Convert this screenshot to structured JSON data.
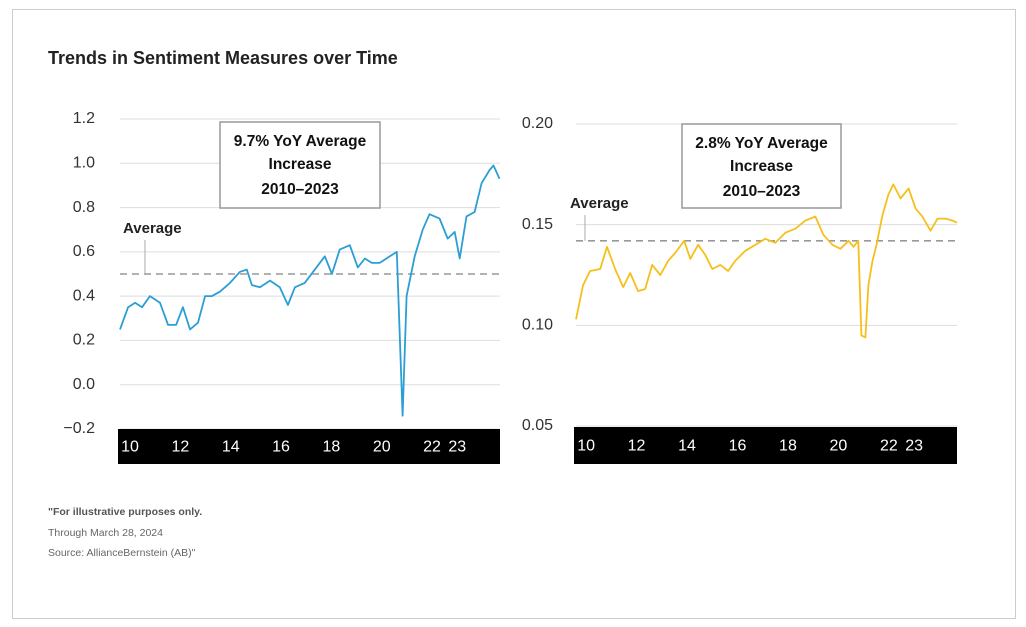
{
  "title": "Trends in Sentiment Measures over Time",
  "notes": [
    "\"For illustrative purposes only.",
    "Through March 28, 2024",
    "Source: AllianceBernstein (AB)\""
  ],
  "chart_data": [
    {
      "type": "line",
      "annotation": [
        "9.7% YoY Average",
        "Increase",
        "2010–2023"
      ],
      "average": {
        "label": "Average",
        "value": 0.5
      },
      "x": [
        9.6,
        9.92,
        10.2,
        10.48,
        10.79,
        11.19,
        11.51,
        11.83,
        12.1,
        12.38,
        12.7,
        12.98,
        13.25,
        13.57,
        13.97,
        14.37,
        14.64,
        14.84,
        15.16,
        15.56,
        15.95,
        16.27,
        16.55,
        16.94,
        17.34,
        17.74,
        18.02,
        18.33,
        18.73,
        19.05,
        19.33,
        19.6,
        19.92,
        20.32,
        20.6,
        20.83,
        20.99,
        21.31,
        21.63,
        21.9,
        22.3,
        22.62,
        22.9,
        23.1,
        23.37,
        23.69,
        23.97,
        24.29,
        24.44,
        24.68
      ],
      "series": [
        {
          "color": "#2b9ed4",
          "values": [
            0.25,
            0.35,
            0.37,
            0.35,
            0.4,
            0.37,
            0.27,
            0.27,
            0.35,
            0.25,
            0.28,
            0.4,
            0.4,
            0.42,
            0.46,
            0.51,
            0.52,
            0.45,
            0.44,
            0.47,
            0.44,
            0.36,
            0.44,
            0.46,
            0.52,
            0.58,
            0.5,
            0.61,
            0.63,
            0.53,
            0.57,
            0.55,
            0.55,
            0.58,
            0.6,
            -0.14,
            0.4,
            0.58,
            0.7,
            0.77,
            0.75,
            0.66,
            0.69,
            0.57,
            0.76,
            0.78,
            0.91,
            0.97,
            0.99,
            0.93
          ]
        }
      ],
      "xlim": [
        9.6,
        24.7
      ],
      "xticks": [
        10,
        12,
        14,
        16,
        18,
        20,
        22,
        23
      ],
      "ylim": [
        -0.2,
        1.2
      ],
      "yticks": [
        {
          "value": -0.2,
          "label": "−0.2"
        },
        {
          "value": 0,
          "label": "0.0"
        },
        0.2,
        0.4,
        0.6,
        0.8,
        {
          "value": 1,
          "label": "1.0"
        },
        1.2
      ],
      "grid": true
    },
    {
      "type": "line",
      "annotation": [
        "2.8% YoY Average",
        "Increase",
        "2010–2023"
      ],
      "average": {
        "label": "Average",
        "value": 0.142
      },
      "x": [
        9.6,
        9.88,
        10.16,
        10.56,
        10.83,
        11.15,
        11.47,
        11.75,
        12.06,
        12.34,
        12.62,
        12.94,
        13.25,
        13.53,
        13.89,
        14.13,
        14.44,
        14.72,
        15.0,
        15.32,
        15.63,
        15.91,
        16.31,
        16.71,
        17.1,
        17.5,
        17.9,
        18.29,
        18.69,
        19.09,
        19.4,
        19.76,
        20.08,
        20.4,
        20.6,
        20.79,
        20.91,
        21.07,
        21.19,
        21.35,
        21.51,
        21.75,
        21.98,
        22.18,
        22.46,
        22.78,
        23.06,
        23.33,
        23.65,
        23.93,
        24.25,
        24.52,
        24.7
      ],
      "series": [
        {
          "color": "#f5c01c",
          "values": [
            0.103,
            0.12,
            0.127,
            0.128,
            0.139,
            0.128,
            0.119,
            0.126,
            0.117,
            0.118,
            0.13,
            0.125,
            0.132,
            0.136,
            0.142,
            0.133,
            0.14,
            0.135,
            0.128,
            0.13,
            0.127,
            0.132,
            0.137,
            0.14,
            0.143,
            0.141,
            0.146,
            0.148,
            0.152,
            0.154,
            0.145,
            0.14,
            0.138,
            0.142,
            0.139,
            0.142,
            0.095,
            0.094,
            0.12,
            0.132,
            0.14,
            0.155,
            0.165,
            0.17,
            0.163,
            0.168,
            0.158,
            0.154,
            0.147,
            0.153,
            0.153,
            0.152,
            0.151
          ]
        }
      ],
      "xlim": [
        9.6,
        24.7
      ],
      "xticks": [
        10,
        12,
        14,
        16,
        18,
        20,
        22,
        23
      ],
      "ylim": [
        0.05,
        0.2
      ],
      "yticks": [
        {
          "value": 0.05,
          "label": "0.05"
        },
        {
          "value": 0.1,
          "label": "0.10"
        },
        {
          "value": 0.15,
          "label": "0.15"
        },
        {
          "value": 0.2,
          "label": "0.20"
        }
      ],
      "grid": true
    }
  ]
}
